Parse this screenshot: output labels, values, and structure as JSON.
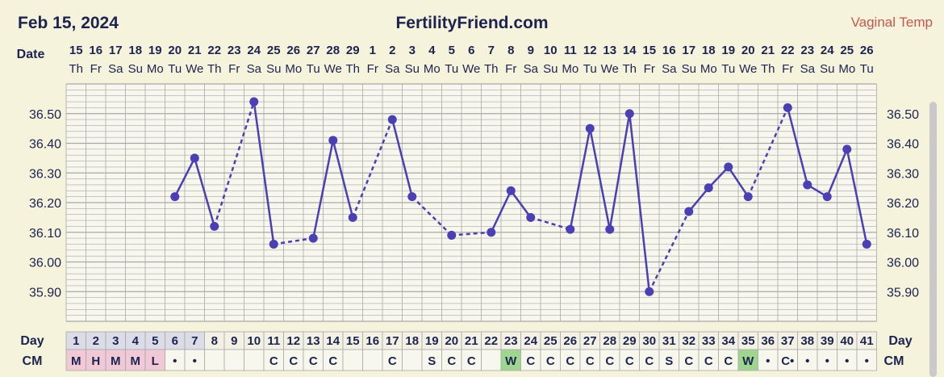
{
  "header": {
    "date": "Feb 15, 2024",
    "site": "FertilityFriend.com",
    "temp_type": "Vaginal Temp"
  },
  "labels": {
    "date": "Date",
    "day": "Day",
    "cm": "CM"
  },
  "colors": {
    "line": "#4b3fb5",
    "grid": "#a8a8a8",
    "grid_bg": "#f8f7ee",
    "period": "#f0c8d6",
    "egg_white": "#9fd68f",
    "day_cell": "#dcdce8"
  },
  "chart_data": {
    "type": "line",
    "title": "",
    "xlabel": "Day",
    "ylabel": "",
    "ylim": [
      35.82,
      36.66
    ],
    "y_ticks": [
      "36.50",
      "36.40",
      "36.30",
      "36.20",
      "36.10",
      "36.00",
      "35.90"
    ],
    "dates": [
      "15",
      "16",
      "17",
      "18",
      "19",
      "20",
      "21",
      "22",
      "23",
      "24",
      "25",
      "26",
      "27",
      "28",
      "29",
      "1",
      "2",
      "3",
      "4",
      "5",
      "6",
      "7",
      "8",
      "9",
      "10",
      "11",
      "12",
      "13",
      "14",
      "15",
      "16",
      "17",
      "18",
      "19",
      "20",
      "21",
      "22",
      "23",
      "24",
      "25",
      "26"
    ],
    "weekdays": [
      "Th",
      "Fr",
      "Sa",
      "Su",
      "Mo",
      "Tu",
      "We",
      "Th",
      "Fr",
      "Sa",
      "Su",
      "Mo",
      "Tu",
      "We",
      "Th",
      "Fr",
      "Sa",
      "Su",
      "Mo",
      "Tu",
      "We",
      "Th",
      "Fr",
      "Sa",
      "Su",
      "Mo",
      "Tu",
      "We",
      "Th",
      "Fr",
      "Sa",
      "Su",
      "Mo",
      "Tu",
      "We",
      "Th",
      "Fr",
      "Sa",
      "Su",
      "Mo",
      "Tu"
    ],
    "cycle_days": [
      1,
      2,
      3,
      4,
      5,
      6,
      7,
      8,
      9,
      10,
      11,
      12,
      13,
      14,
      15,
      16,
      17,
      18,
      19,
      20,
      21,
      22,
      23,
      24,
      25,
      26,
      27,
      28,
      29,
      30,
      31,
      32,
      33,
      34,
      35,
      36,
      37,
      38,
      39,
      40,
      41
    ],
    "temperatures": [
      {
        "day": 6,
        "temp": 36.22
      },
      {
        "day": 7,
        "temp": 36.35
      },
      {
        "day": 8,
        "temp": 36.12
      },
      {
        "day": 10,
        "temp": 36.54
      },
      {
        "day": 11,
        "temp": 36.06
      },
      {
        "day": 13,
        "temp": 36.08
      },
      {
        "day": 14,
        "temp": 36.41
      },
      {
        "day": 15,
        "temp": 36.15
      },
      {
        "day": 17,
        "temp": 36.48
      },
      {
        "day": 18,
        "temp": 36.22
      },
      {
        "day": 20,
        "temp": 36.09
      },
      {
        "day": 22,
        "temp": 36.1
      },
      {
        "day": 23,
        "temp": 36.24
      },
      {
        "day": 24,
        "temp": 36.15
      },
      {
        "day": 26,
        "temp": 36.11
      },
      {
        "day": 27,
        "temp": 36.45
      },
      {
        "day": 28,
        "temp": 36.11
      },
      {
        "day": 29,
        "temp": 36.5
      },
      {
        "day": 30,
        "temp": 35.9
      },
      {
        "day": 32,
        "temp": 36.17
      },
      {
        "day": 33,
        "temp": 36.25
      },
      {
        "day": 34,
        "temp": 36.32
      },
      {
        "day": 35,
        "temp": 36.22
      },
      {
        "day": 37,
        "temp": 36.52
      },
      {
        "day": 38,
        "temp": 36.26
      },
      {
        "day": 39,
        "temp": 36.22
      },
      {
        "day": 40,
        "temp": 36.38
      },
      {
        "day": 41,
        "temp": 36.06
      }
    ],
    "cm": [
      "M",
      "H",
      "M",
      "M",
      "L",
      "•",
      "•",
      "",
      "",
      "",
      "C",
      "C",
      "C",
      "C",
      "",
      "",
      "C",
      "",
      "S",
      "C",
      "C",
      "",
      "W",
      "C",
      "C",
      "C",
      "C",
      "C",
      "C",
      "C",
      "S",
      "C",
      "C",
      "C",
      "W",
      "•",
      "C•",
      "•",
      "•",
      "•",
      "•"
    ]
  }
}
